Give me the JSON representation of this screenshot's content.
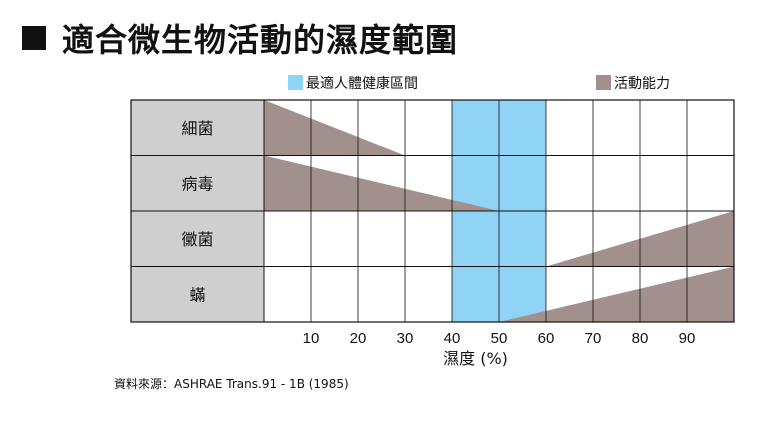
{
  "title": "適合微生物活動的濕度範圍",
  "source": "資料來源：ASHRAE Trans.91 - 1B (1985)",
  "colors": {
    "optimal": "#8fd3f5",
    "activity": "#a2908d",
    "row_label_bg": "#cfcfcf",
    "grid": "#111111"
  },
  "chart_data": {
    "type": "area",
    "title": "適合微生物活動的濕度範圍",
    "xlabel": "濕度 (%)",
    "ylabel": "",
    "xlim": [
      0,
      100
    ],
    "x_ticks": [
      10,
      20,
      30,
      40,
      50,
      60,
      70,
      80,
      90
    ],
    "grid": true,
    "legend_position": "top",
    "legend": [
      {
        "label": "最適人體健康區間",
        "color": "#8fd3f5"
      },
      {
        "label": "活動能力",
        "color": "#a2908d"
      }
    ],
    "optimal_range": [
      40,
      60
    ],
    "categories": [
      "細菌",
      "病毒",
      "黴菌",
      "蟎"
    ],
    "series": [
      {
        "name": "細菌",
        "x": [
          0,
          30
        ],
        "activity": [
          1,
          0
        ]
      },
      {
        "name": "病毒",
        "x": [
          0,
          50
        ],
        "activity": [
          1,
          0
        ]
      },
      {
        "name": "黴菌",
        "x": [
          60,
          100
        ],
        "activity": [
          0,
          1
        ]
      },
      {
        "name": "蟎",
        "x": [
          50,
          100
        ],
        "activity": [
          0,
          1
        ]
      }
    ]
  }
}
